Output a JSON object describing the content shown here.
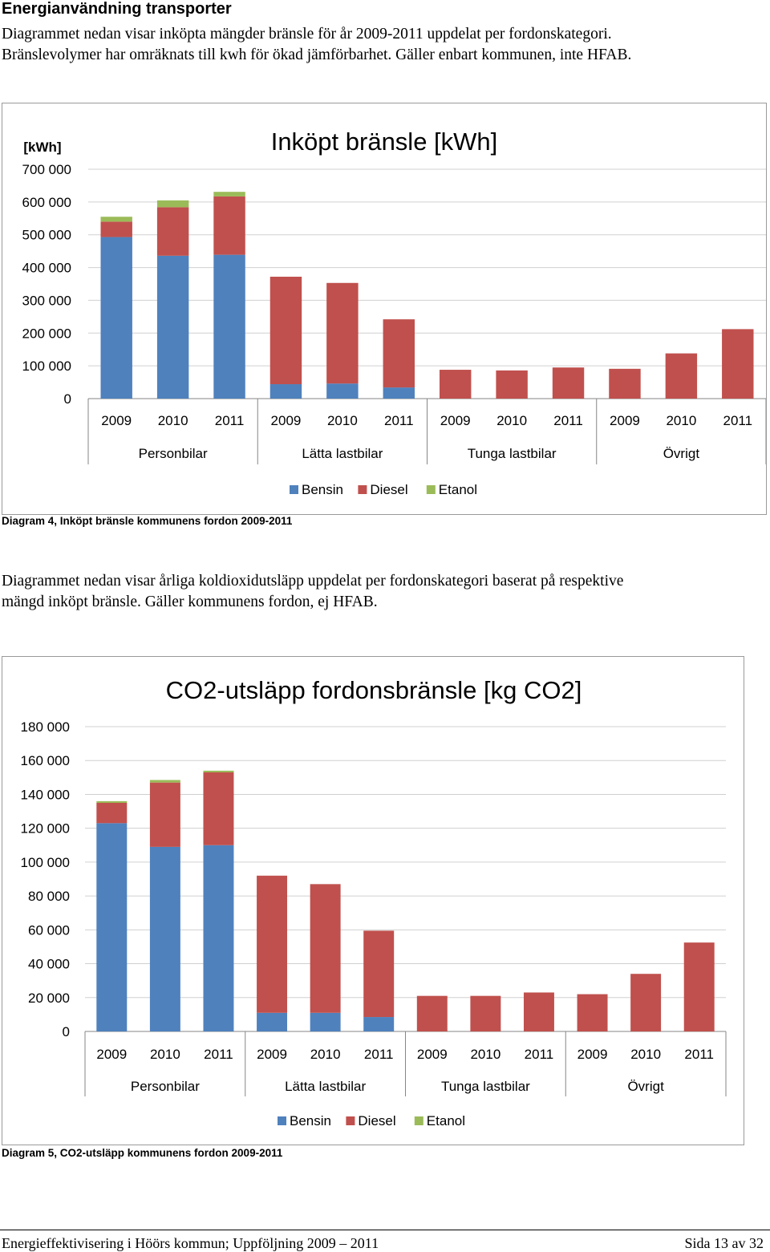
{
  "heading": "Energianvändning transporter",
  "intro": {
    "line1": "Diagrammet nedan visar inköpta mängder bränsle för år 2009-2011 uppdelat per fordonskategori.",
    "line2": "Bränslevolymer har omräknats till kwh för ökad jämförbarhet. Gäller enbart kommunen, inte HFAB."
  },
  "middle": {
    "line1": "Diagrammet nedan visar årliga koldioxidutsläpp uppdelat per fordonskategori baserat på respektive",
    "line2": "mängd inköpt bränsle. Gäller kommunens fordon, ej HFAB."
  },
  "captions": {
    "chart1": "Diagram 4, Inköpt bränsle kommunens fordon 2009-2011",
    "chart2": "Diagram 5, CO2-utsläpp kommunens fordon 2009-2011"
  },
  "footer": {
    "left": "Energieffektivisering i Höörs kommun; Uppföljning 2009 – 2011",
    "right": "Sida 13 av 32"
  },
  "colors": {
    "Bensin": "#4f81bd",
    "Diesel": "#c0504d",
    "Etanol": "#9bbb59"
  },
  "chart_data": [
    {
      "type": "bar",
      "stacked": true,
      "title": "Inköpt bränsle [kWh]",
      "ylabel": "[kWh]",
      "xlabel": "",
      "ylim": [
        0,
        700000
      ],
      "yticks": [
        0,
        100000,
        200000,
        300000,
        400000,
        500000,
        600000,
        700000
      ],
      "ytick_labels": [
        "0",
        "100 000",
        "200 000",
        "300 000",
        "400 000",
        "500 000",
        "600 000",
        "700 000"
      ],
      "groups": [
        "Personbilar",
        "Lätta lastbilar",
        "Tunga lastbilar",
        "Övrigt"
      ],
      "categories": [
        "2009",
        "2010",
        "2011",
        "2009",
        "2010",
        "2011",
        "2009",
        "2010",
        "2011",
        "2009",
        "2010",
        "2011"
      ],
      "series": [
        {
          "name": "Bensin",
          "values": [
            493000,
            436000,
            439000,
            44000,
            46000,
            34000,
            0,
            0,
            0,
            0,
            0,
            0
          ]
        },
        {
          "name": "Diesel",
          "values": [
            47000,
            148000,
            178000,
            328000,
            307000,
            208000,
            88000,
            86000,
            95000,
            91000,
            138000,
            212000
          ]
        },
        {
          "name": "Etanol",
          "values": [
            15000,
            21000,
            14000,
            0,
            0,
            0,
            0,
            0,
            0,
            0,
            0,
            0
          ]
        }
      ],
      "legend": "bottom",
      "grid": true
    },
    {
      "type": "bar",
      "stacked": true,
      "title": "CO2-utsläpp fordonsbränsle [kg CO2]",
      "ylabel": "",
      "xlabel": "",
      "ylim": [
        0,
        180000
      ],
      "yticks": [
        0,
        20000,
        40000,
        60000,
        80000,
        100000,
        120000,
        140000,
        160000,
        180000
      ],
      "ytick_labels": [
        "0",
        "20 000",
        "40 000",
        "60 000",
        "80 000",
        "100 000",
        "120 000",
        "140 000",
        "160 000",
        "180 000"
      ],
      "groups": [
        "Personbilar",
        "Lätta lastbilar",
        "Tunga lastbilar",
        "Övrigt"
      ],
      "categories": [
        "2009",
        "2010",
        "2011",
        "2009",
        "2010",
        "2011",
        "2009",
        "2010",
        "2011",
        "2009",
        "2010",
        "2011"
      ],
      "series": [
        {
          "name": "Bensin",
          "values": [
            123000,
            109000,
            110000,
            11000,
            11000,
            8500,
            0,
            0,
            0,
            0,
            0,
            0
          ]
        },
        {
          "name": "Diesel",
          "values": [
            12000,
            38000,
            43000,
            81000,
            76000,
            51000,
            21000,
            21000,
            23000,
            22000,
            34000,
            52500
          ]
        },
        {
          "name": "Etanol",
          "values": [
            1000,
            1500,
            1000,
            0,
            0,
            0,
            0,
            0,
            0,
            0,
            0,
            0
          ]
        }
      ],
      "legend": "bottom",
      "grid": true
    }
  ]
}
